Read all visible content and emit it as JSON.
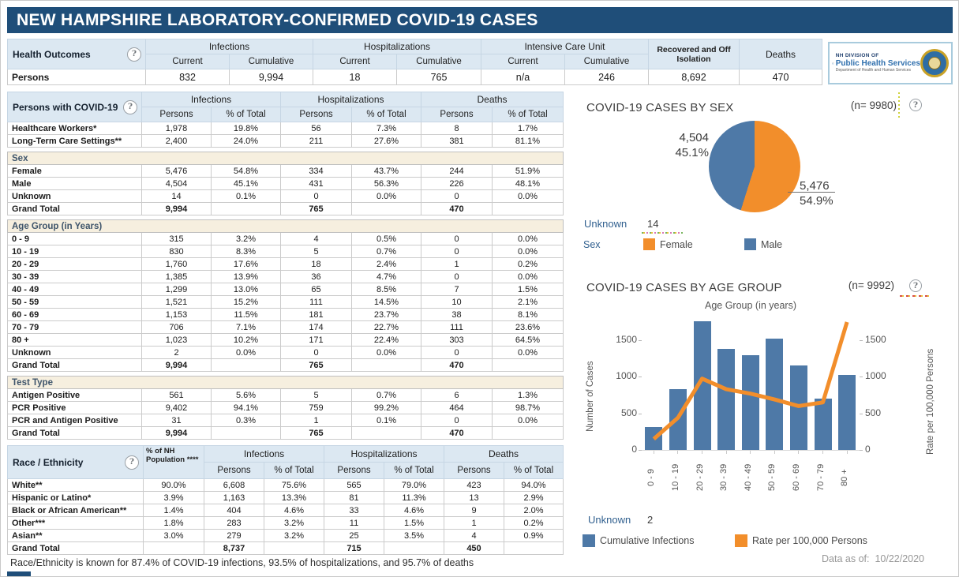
{
  "title": "NEW HAMPSHIRE LABORATORY-CONFIRMED COVID-19 CASES",
  "icons": {
    "help": "?"
  },
  "colors": {
    "title_bar": "#1f4e79",
    "header_blue": "#dce8f2",
    "section_beige": "#f6efdf",
    "bar_blue": "#4e79a7",
    "line_orange": "#f28e2b"
  },
  "health_outcomes": {
    "label": "Health Outcomes",
    "groups": [
      {
        "label": "Infections",
        "subs": [
          "Current",
          "Cumulative"
        ]
      },
      {
        "label": "Hospitalizations",
        "subs": [
          "Current",
          "Cumulative"
        ]
      },
      {
        "label": "Intensive Care Unit",
        "subs": [
          "Current",
          "Cumulative"
        ]
      }
    ],
    "recovered_label": "Recovered and Off Isolation",
    "deaths_label": "Deaths",
    "row_label": "Persons",
    "values": [
      "832",
      "9,994",
      "18",
      "765",
      "n/a",
      "246",
      "8,692",
      "470"
    ]
  },
  "logo": {
    "line1": "NH DIVISION OF",
    "line2": "Public Health Services",
    "line3": "Department of Health and Human Services"
  },
  "persons_table": {
    "label": "Persons with COVID-19",
    "groups": [
      "Infections",
      "Hospitalizations",
      "Deaths"
    ],
    "subs": [
      "Persons",
      "% of Total"
    ],
    "sections": [
      {
        "header": "",
        "rows": [
          {
            "label": "Healthcare Workers*",
            "values": [
              "1,978",
              "19.8%",
              "56",
              "7.3%",
              "8",
              "1.7%"
            ]
          },
          {
            "label": "Long-Term Care Settings**",
            "values": [
              "2,400",
              "24.0%",
              "211",
              "27.6%",
              "381",
              "81.1%"
            ]
          }
        ]
      },
      {
        "header": "Sex",
        "rows": [
          {
            "label": "Female",
            "values": [
              "5,476",
              "54.8%",
              "334",
              "43.7%",
              "244",
              "51.9%"
            ]
          },
          {
            "label": "Male",
            "values": [
              "4,504",
              "45.1%",
              "431",
              "56.3%",
              "226",
              "48.1%"
            ]
          },
          {
            "label": "Unknown",
            "values": [
              "14",
              "0.1%",
              "0",
              "0.0%",
              "0",
              "0.0%"
            ]
          },
          {
            "label": "Grand Total",
            "bold": true,
            "values": [
              "9,994",
              "",
              "765",
              "",
              "470",
              ""
            ]
          }
        ]
      },
      {
        "header": "Age Group (in Years)",
        "rows": [
          {
            "label": "0 - 9",
            "values": [
              "315",
              "3.2%",
              "4",
              "0.5%",
              "0",
              "0.0%"
            ]
          },
          {
            "label": "10 - 19",
            "values": [
              "830",
              "8.3%",
              "5",
              "0.7%",
              "0",
              "0.0%"
            ]
          },
          {
            "label": "20 - 29",
            "values": [
              "1,760",
              "17.6%",
              "18",
              "2.4%",
              "1",
              "0.2%"
            ]
          },
          {
            "label": "30 - 39",
            "values": [
              "1,385",
              "13.9%",
              "36",
              "4.7%",
              "0",
              "0.0%"
            ]
          },
          {
            "label": "40 - 49",
            "values": [
              "1,299",
              "13.0%",
              "65",
              "8.5%",
              "7",
              "1.5%"
            ]
          },
          {
            "label": "50 - 59",
            "values": [
              "1,521",
              "15.2%",
              "111",
              "14.5%",
              "10",
              "2.1%"
            ]
          },
          {
            "label": "60 - 69",
            "values": [
              "1,153",
              "11.5%",
              "181",
              "23.7%",
              "38",
              "8.1%"
            ]
          },
          {
            "label": "70 - 79",
            "values": [
              "706",
              "7.1%",
              "174",
              "22.7%",
              "111",
              "23.6%"
            ]
          },
          {
            "label": "80 +",
            "values": [
              "1,023",
              "10.2%",
              "171",
              "22.4%",
              "303",
              "64.5%"
            ]
          },
          {
            "label": "Unknown",
            "values": [
              "2",
              "0.0%",
              "0",
              "0.0%",
              "0",
              "0.0%"
            ]
          },
          {
            "label": "Grand Total",
            "bold": true,
            "values": [
              "9,994",
              "",
              "765",
              "",
              "470",
              ""
            ]
          }
        ]
      },
      {
        "header": "Test Type",
        "rows": [
          {
            "label": "Antigen Positive",
            "values": [
              "561",
              "5.6%",
              "5",
              "0.7%",
              "6",
              "1.3%"
            ]
          },
          {
            "label": "PCR Positive",
            "values": [
              "9,402",
              "94.1%",
              "759",
              "99.2%",
              "464",
              "98.7%"
            ]
          },
          {
            "label": "PCR and Antigen Positive",
            "values": [
              "31",
              "0.3%",
              "1",
              "0.1%",
              "0",
              "0.0%"
            ]
          },
          {
            "label": "Grand Total",
            "bold": true,
            "values": [
              "9,994",
              "",
              "765",
              "",
              "470",
              ""
            ]
          }
        ]
      }
    ]
  },
  "race_table": {
    "label": "Race / Ethnicity",
    "pop_header": "% of NH Population ****",
    "groups": [
      "Infections",
      "Hospitalizations",
      "Deaths"
    ],
    "subs": [
      "Persons",
      "% of Total"
    ],
    "rows": [
      {
        "label": "White**",
        "pop": "90.0%",
        "values": [
          "6,608",
          "75.6%",
          "565",
          "79.0%",
          "423",
          "94.0%"
        ]
      },
      {
        "label": "Hispanic or Latino*",
        "pop": "3.9%",
        "values": [
          "1,163",
          "13.3%",
          "81",
          "11.3%",
          "13",
          "2.9%"
        ]
      },
      {
        "label": "Black or African American**",
        "pop": "1.4%",
        "values": [
          "404",
          "4.6%",
          "33",
          "4.6%",
          "9",
          "2.0%"
        ]
      },
      {
        "label": "Other***",
        "pop": "1.8%",
        "values": [
          "283",
          "3.2%",
          "11",
          "1.5%",
          "1",
          "0.2%"
        ]
      },
      {
        "label": "Asian**",
        "pop": "3.0%",
        "values": [
          "279",
          "3.2%",
          "25",
          "3.5%",
          "4",
          "0.9%"
        ]
      },
      {
        "label": "Grand Total",
        "pop": "",
        "bold": true,
        "values": [
          "8,737",
          "",
          "715",
          "",
          "450",
          ""
        ]
      }
    ]
  },
  "footnote": "Race/Ethnicity is known for 87.4% of COVID-19 infections, 93.5% of hospitalizations, and 95.7% of deaths",
  "data_as_of": {
    "label": "Data as of:",
    "value": "10/22/2020"
  },
  "chart_data": [
    {
      "type": "pie",
      "title": "COVID-19 CASES BY SEX",
      "n_label": "(n= 9980)",
      "legend_title": "Sex",
      "slices": [
        {
          "label": "Female",
          "value": 5476,
          "display": "5,476",
          "pct": "54.9%",
          "color": "#f28e2b"
        },
        {
          "label": "Male",
          "value": 4504,
          "display": "4,504",
          "pct": "45.1%",
          "color": "#4e79a7"
        }
      ],
      "unknown_label": "Unknown",
      "unknown_value": "14",
      "legend_position": "bottom"
    },
    {
      "type": "bar+line",
      "title": "COVID-19 CASES BY AGE GROUP",
      "n_label": "(n= 9992)",
      "x_title": "Age Group (in years)",
      "categories": [
        "0 - 9",
        "10 - 19",
        "20 - 29",
        "30 - 39",
        "40 - 49",
        "50 - 59",
        "60 - 69",
        "70 - 79",
        "80 +"
      ],
      "series": [
        {
          "name": "Cumulative Infections",
          "type": "bar",
          "color": "#4e79a7",
          "values": [
            315,
            830,
            1760,
            1385,
            1299,
            1521,
            1153,
            706,
            1023
          ]
        },
        {
          "name": "Rate per 100,000 Persons",
          "type": "line",
          "color": "#f28e2b",
          "values": [
            150,
            440,
            975,
            830,
            770,
            690,
            600,
            650,
            1750
          ]
        }
      ],
      "ylabel_left": "Number of Cases",
      "ylabel_right": "Rate per 100,000 Persons",
      "yticks": [
        0,
        500,
        1000,
        1500
      ],
      "ylim": [
        0,
        1850
      ],
      "grid": false,
      "legend_position": "bottom",
      "unknown_label": "Unknown",
      "unknown_value": "2"
    }
  ]
}
